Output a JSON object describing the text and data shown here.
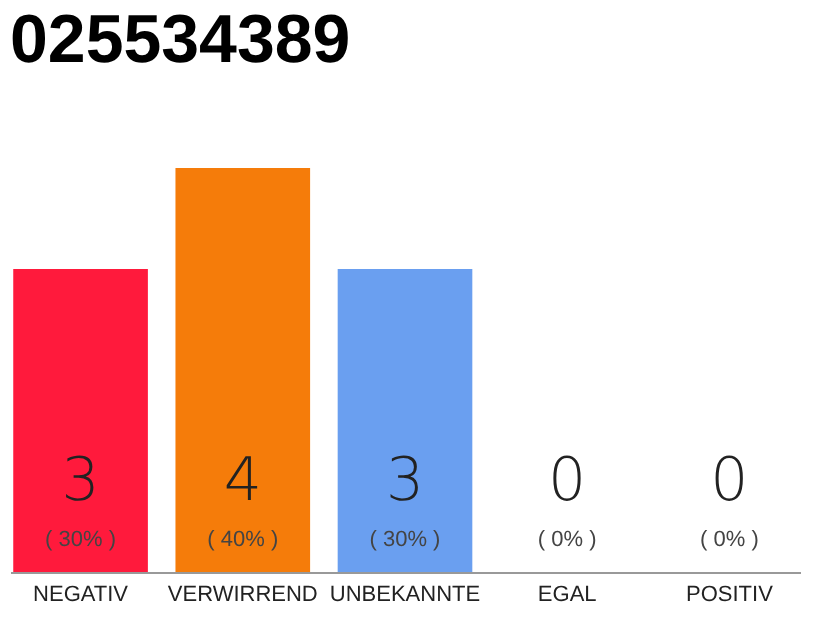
{
  "chart_data": {
    "type": "bar",
    "title": "025534389",
    "categories": [
      "NEGATIV",
      "VERWIRREND",
      "UNBEKANNTE",
      "EGAL",
      "POSITIV"
    ],
    "values": [
      3,
      4,
      3,
      0,
      0
    ],
    "colors": [
      "#ff1a3c",
      "#f57c0a",
      "#6a9ff0",
      "#bbbbbb",
      "#bbbbbb"
    ],
    "data_labels": true,
    "annotations": [
      {
        "text": "( 30% )",
        "x": "NEGATIV",
        "y": 0
      },
      {
        "text": "( 40% )",
        "x": "VERWIRREND",
        "y": 0
      },
      {
        "text": "( 30% )",
        "x": "UNBEKANNTE",
        "y": 0
      },
      {
        "text": "( 0% )",
        "x": "EGAL",
        "y": 0
      },
      {
        "text": "( 0% )",
        "x": "POSITIV",
        "y": 0
      }
    ],
    "tick_labels": "x",
    "grid": false
  }
}
